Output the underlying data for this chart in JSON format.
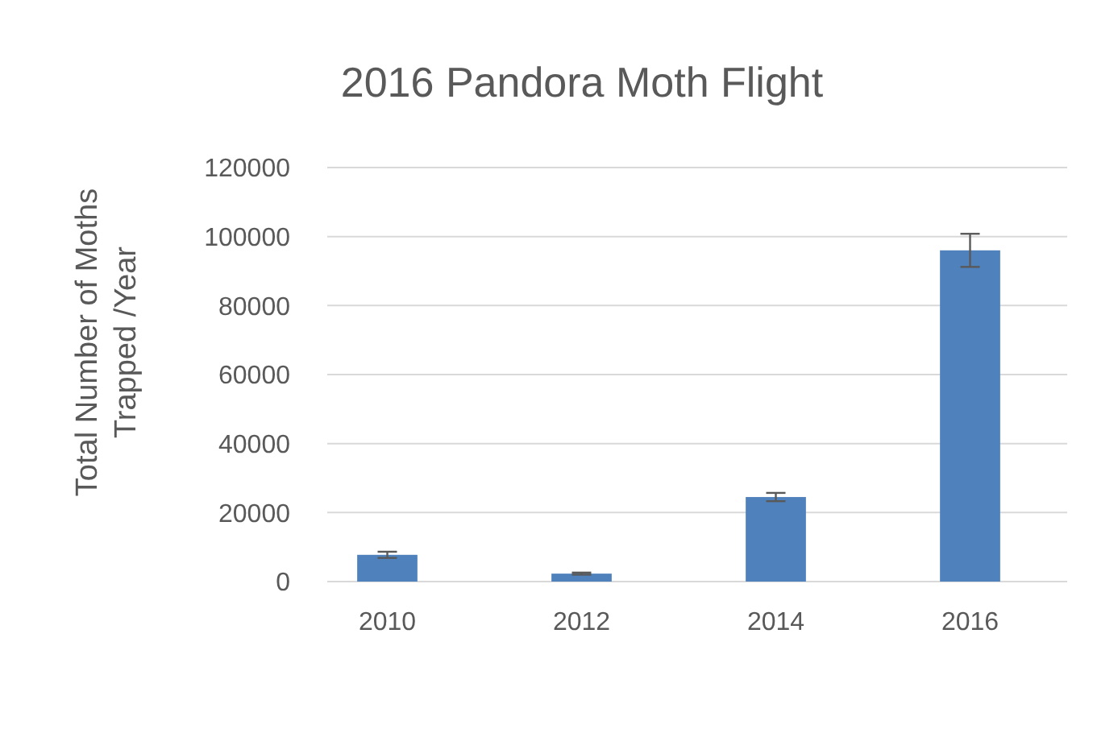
{
  "chart_data": {
    "type": "bar",
    "title": "2016 Pandora Moth Flight",
    "ylabel": "Total Number of Moths Trapped /Year",
    "categories": [
      "2010",
      "2012",
      "2014",
      "2016"
    ],
    "values": [
      7750,
      2300,
      24500,
      96000
    ],
    "errors": [
      900,
      300,
      1200,
      4800
    ],
    "color": "#4f81bd",
    "ylim": [
      0,
      120000
    ],
    "yticks": [
      0,
      20000,
      40000,
      60000,
      80000,
      100000,
      120000
    ],
    "grid": "y"
  }
}
